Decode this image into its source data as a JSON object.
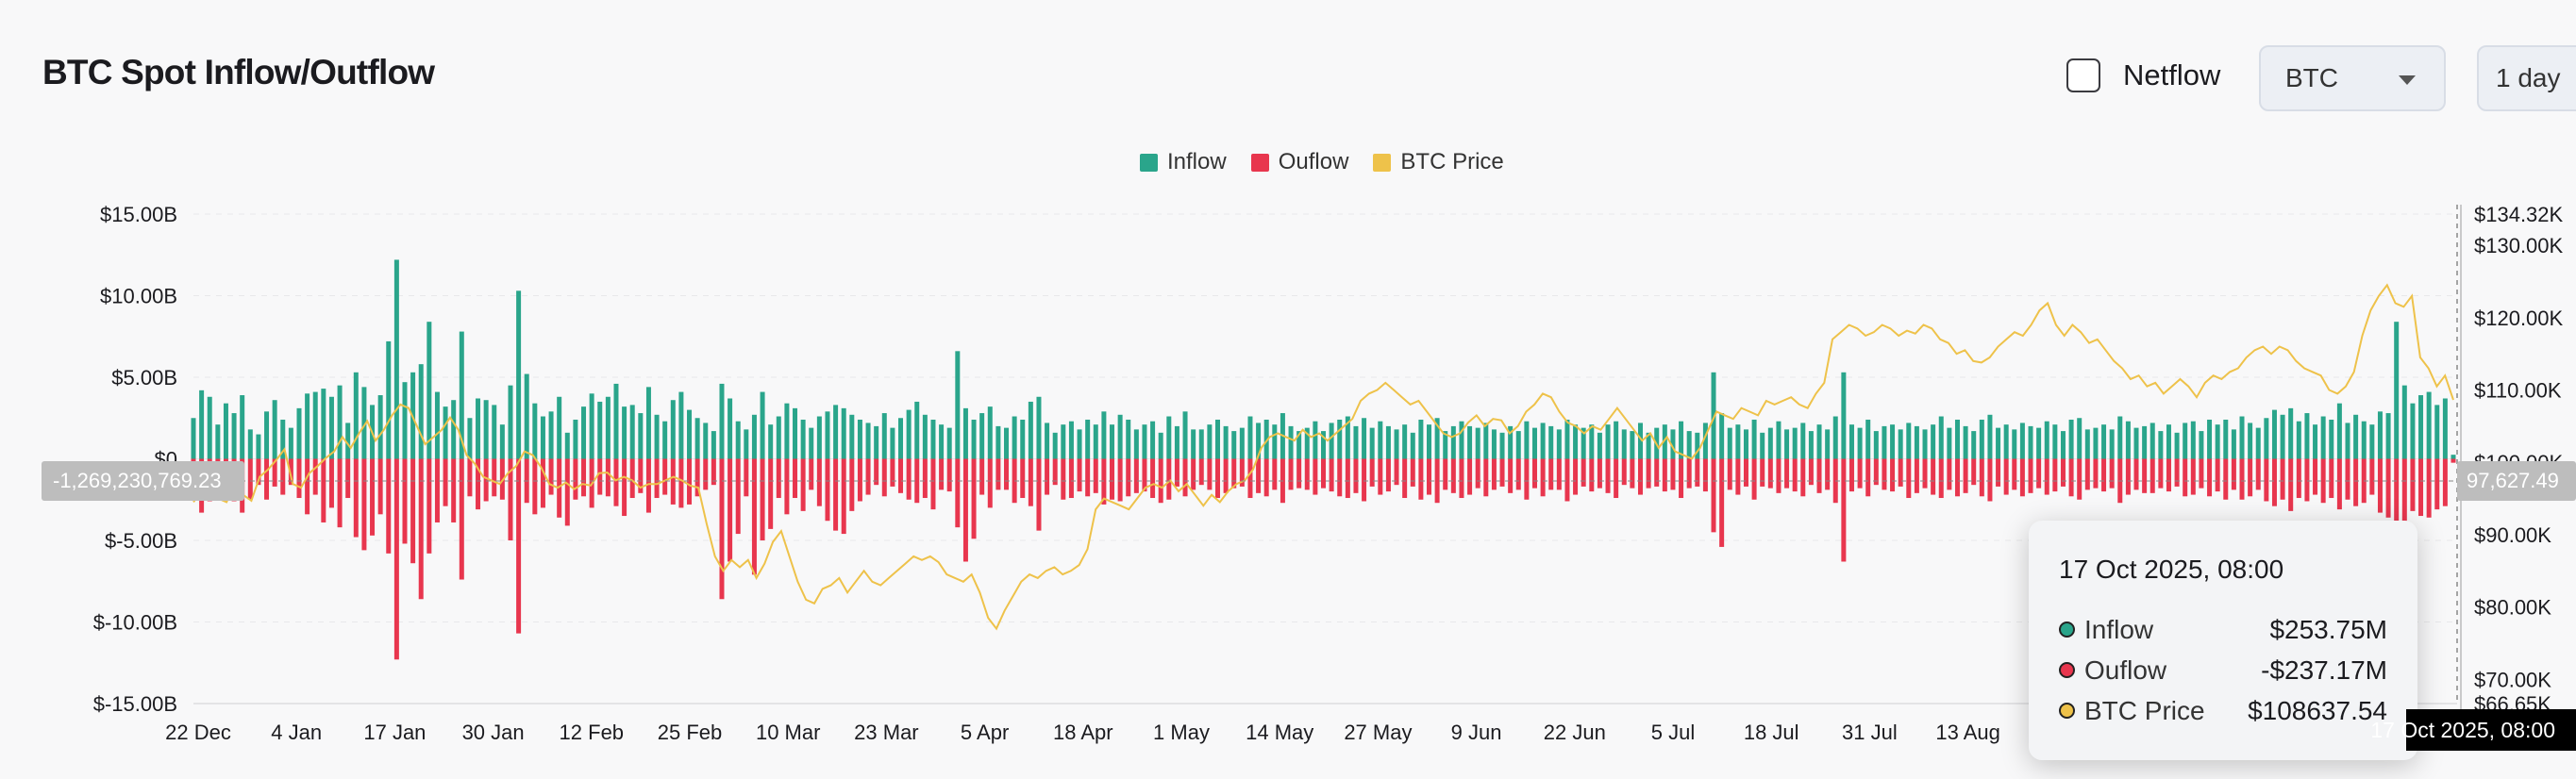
{
  "header": {
    "title": "BTC Spot Inflow/Outflow",
    "netflow_label": "Netflow",
    "asset_select_value": "BTC",
    "interval_value": "1 day"
  },
  "legend": [
    {
      "label": "Inflow",
      "color": "#2aa58b"
    },
    {
      "label": "Ouflow",
      "color": "#e8364e"
    },
    {
      "label": "BTC Price",
      "color": "#eec24a"
    }
  ],
  "tooltip": {
    "title": "17 Oct 2025, 08:00",
    "rows": [
      {
        "name": "Inflow",
        "value": "$253.75M",
        "color": "#2aa58b"
      },
      {
        "name": "Ouflow",
        "value": "-$237.17M",
        "color": "#e8364e"
      },
      {
        "name": "BTC Price",
        "value": "$108637.54",
        "color": "#eec24a"
      }
    ]
  },
  "crosshair": {
    "x_label": "17 Oct 2025, 08:00",
    "y_left_label": "-1,269,230,769.23",
    "y_right_label": "97,627.49"
  },
  "chart_data": {
    "type": "bar",
    "title": "BTC Spot Inflow/Outflow",
    "x_tick_labels": [
      "22 Dec",
      "4 Jan",
      "17 Jan",
      "30 Jan",
      "12 Feb",
      "25 Feb",
      "10 Mar",
      "23 Mar",
      "5 Apr",
      "18 Apr",
      "1 May",
      "14 May",
      "27 May",
      "9 Jun",
      "22 Jun",
      "5 Jul",
      "18 Jul",
      "31 Jul",
      "13 Aug"
    ],
    "y_left_ticks": [
      "$15.00B",
      "$10.00B",
      "$5.00B",
      "$0",
      "$-5.00B",
      "$-10.00B",
      "$-15.00B"
    ],
    "y_left_lim": [
      -15,
      15
    ],
    "y_left_unit": "B",
    "y_right_ticks": [
      "$134.32K",
      "$130.00K",
      "$120.00K",
      "$110.00K",
      "$100.00K",
      "$90.00K",
      "$80.00K",
      "$70.00K",
      "$66.65K"
    ],
    "y_right_lim": [
      66.65,
      134.32
    ],
    "y_right_unit": "K",
    "grid": true,
    "legend_position": "top-center",
    "x_start": "22 Dec",
    "x_end": "17 Oct",
    "series": [
      {
        "name": "Inflow",
        "color": "#2aa58b",
        "values": [
          2.5,
          4.2,
          3.8,
          2.1,
          3.4,
          2.8,
          3.9,
          1.8,
          1.5,
          2.9,
          3.6,
          2.4,
          1.9,
          3.1,
          4.0,
          4.1,
          4.3,
          3.8,
          4.5,
          2.2,
          5.3,
          4.4,
          3.3,
          3.9,
          7.2,
          12.2,
          4.7,
          5.3,
          5.8,
          8.4,
          4.1,
          3.2,
          3.6,
          7.8,
          2.5,
          3.7,
          3.6,
          3.3,
          2.1,
          4.5,
          10.3,
          5.2,
          3.4,
          2.6,
          2.9,
          3.8,
          1.6,
          2.4,
          3.2,
          4.0,
          3.5,
          3.8,
          4.6,
          3.2,
          3.3,
          2.8,
          4.4,
          2.7,
          2.3,
          3.6,
          4.1,
          3.0,
          2.5,
          2.2,
          1.7,
          4.6,
          3.7,
          2.3,
          1.8,
          2.7,
          4.1,
          2.1,
          2.6,
          3.4,
          3.1,
          2.4,
          1.9,
          2.6,
          2.9,
          3.3,
          3.1,
          2.7,
          2.4,
          2.2,
          2.0,
          2.8,
          1.9,
          2.5,
          3.0,
          3.5,
          2.7,
          2.4,
          2.1,
          1.9,
          6.6,
          3.1,
          2.4,
          2.8,
          3.2,
          2.0,
          1.9,
          2.6,
          2.4,
          3.5,
          3.8,
          2.2,
          1.6,
          2.1,
          2.3,
          1.8,
          2.4,
          2.1,
          2.9,
          2.1,
          2.7,
          2.4,
          1.8,
          2.1,
          2.3,
          1.6,
          2.6,
          2.0,
          2.9,
          1.8,
          1.8,
          2.1,
          2.4,
          2.0,
          1.7,
          1.9,
          2.6,
          2.2,
          2.4,
          2.1,
          2.8,
          2.0,
          1.7,
          1.9,
          2.3,
          1.7,
          2.2,
          2.4,
          2.6,
          2.0,
          2.5,
          1.9,
          2.3,
          2.0,
          1.8,
          2.1,
          1.6,
          2.4,
          2.1,
          2.5,
          1.7,
          2.0,
          2.3,
          2.0,
          1.9,
          2.2,
          1.8,
          1.6,
          2.0,
          1.7,
          2.3,
          1.9,
          2.2,
          2.0,
          1.8,
          2.4,
          2.1,
          1.9,
          2.1,
          1.6,
          2.1,
          2.3,
          1.8,
          1.7,
          2.2,
          1.6,
          1.9,
          2.1,
          1.8,
          2.3,
          1.7,
          1.6,
          2.2,
          5.3,
          2.8,
          1.9,
          2.1,
          1.8,
          2.4,
          1.6,
          1.9,
          2.3,
          1.8,
          1.9,
          2.2,
          1.7,
          2.1,
          1.8,
          2.6,
          5.3,
          2.1,
          1.9,
          2.4,
          1.7,
          2.0,
          2.1,
          1.8,
          2.2,
          2.0,
          1.8,
          2.1,
          2.6,
          1.9,
          2.4,
          2.0,
          1.7,
          2.4,
          2.7,
          1.9,
          2.1,
          1.8,
          2.2,
          2.0,
          1.9,
          2.3,
          2.1,
          1.7,
          2.4,
          2.5,
          1.8,
          1.9,
          2.1,
          1.8,
          2.6,
          2.3,
          1.9,
          2.0,
          2.2,
          1.7,
          2.1,
          1.6,
          2.2,
          2.3,
          1.7,
          2.4,
          2.1,
          2.4,
          1.8,
          2.6,
          2.2,
          1.9,
          2.5,
          3.0,
          2.7,
          3.1,
          2.3,
          2.8,
          2.1,
          2.6,
          2.4,
          3.4,
          2.2,
          2.7,
          2.3,
          2.1,
          2.9,
          2.8,
          8.4,
          4.5,
          3.4,
          3.9,
          4.1,
          3.3,
          3.7,
          0.25
        ]
      },
      {
        "name": "Ouflow",
        "color": "#e8364e",
        "values": [
          -2.4,
          -3.3,
          -2.6,
          -2.3,
          -2.1,
          -2.6,
          -3.3,
          -2.5,
          -1.6,
          -2.5,
          -1.7,
          -2.2,
          -1.6,
          -2.4,
          -3.4,
          -2.2,
          -3.9,
          -3.0,
          -4.2,
          -2.4,
          -4.8,
          -5.6,
          -4.7,
          -3.4,
          -5.8,
          -12.3,
          -5.2,
          -6.4,
          -8.6,
          -5.8,
          -3.9,
          -2.9,
          -3.9,
          -7.4,
          -2.3,
          -3.1,
          -2.6,
          -2.3,
          -2.5,
          -5.0,
          -10.7,
          -2.7,
          -3.4,
          -3.0,
          -2.2,
          -3.6,
          -4.1,
          -2.5,
          -2.3,
          -3.0,
          -2.2,
          -2.3,
          -2.9,
          -3.5,
          -2.4,
          -2.1,
          -3.3,
          -2.4,
          -2.2,
          -2.8,
          -3.0,
          -2.8,
          -2.3,
          -1.9,
          -1.6,
          -8.6,
          -6.3,
          -4.6,
          -2.3,
          -7.1,
          -5.0,
          -4.3,
          -2.4,
          -3.4,
          -2.4,
          -3.2,
          -1.9,
          -2.9,
          -3.8,
          -4.4,
          -4.6,
          -3.2,
          -2.6,
          -2.2,
          -1.6,
          -2.3,
          -1.7,
          -2.1,
          -2.5,
          -2.7,
          -2.4,
          -3.1,
          -1.9,
          -2.0,
          -4.2,
          -6.3,
          -4.9,
          -2.2,
          -3.0,
          -1.9,
          -1.9,
          -2.7,
          -2.4,
          -2.9,
          -4.4,
          -2.2,
          -1.6,
          -2.5,
          -2.4,
          -2.0,
          -2.3,
          -2.1,
          -2.8,
          -2.5,
          -2.6,
          -2.3,
          -2.1,
          -2.0,
          -2.4,
          -2.7,
          -2.5,
          -1.7,
          -2.3,
          -1.9,
          -1.6,
          -1.9,
          -2.4,
          -2.1,
          -1.8,
          -1.7,
          -2.4,
          -2.1,
          -2.3,
          -1.9,
          -2.7,
          -1.9,
          -1.8,
          -1.9,
          -2.2,
          -1.8,
          -2.0,
          -2.3,
          -2.4,
          -2.1,
          -2.6,
          -1.7,
          -2.2,
          -2.0,
          -1.6,
          -2.4,
          -1.7,
          -2.5,
          -2.2,
          -2.7,
          -1.9,
          -2.1,
          -2.4,
          -2.2,
          -1.8,
          -2.3,
          -1.9,
          -1.7,
          -2.1,
          -1.9,
          -2.5,
          -1.8,
          -2.3,
          -1.9,
          -1.9,
          -2.6,
          -2.2,
          -1.7,
          -2.0,
          -1.8,
          -2.1,
          -2.4,
          -1.6,
          -1.8,
          -2.2,
          -1.8,
          -1.7,
          -2.0,
          -1.9,
          -2.4,
          -1.8,
          -1.7,
          -2.0,
          -4.5,
          -5.4,
          -1.9,
          -2.2,
          -1.7,
          -2.5,
          -1.7,
          -1.8,
          -2.1,
          -1.8,
          -2.0,
          -2.3,
          -1.6,
          -2.1,
          -1.9,
          -2.7,
          -6.3,
          -2.0,
          -1.8,
          -2.3,
          -1.6,
          -1.9,
          -2.0,
          -1.7,
          -2.4,
          -2.1,
          -1.8,
          -2.2,
          -2.4,
          -1.9,
          -2.3,
          -2.1,
          -1.6,
          -2.3,
          -2.6,
          -1.7,
          -2.2,
          -1.9,
          -2.3,
          -2.1,
          -1.8,
          -2.2,
          -2.0,
          -1.7,
          -2.3,
          -2.5,
          -1.9,
          -1.8,
          -2.0,
          -1.8,
          -2.7,
          -2.2,
          -1.9,
          -2.1,
          -2.1,
          -1.8,
          -2.0,
          -1.7,
          -2.3,
          -2.2,
          -1.8,
          -2.3,
          -2.0,
          -2.5,
          -1.9,
          -2.5,
          -2.3,
          -1.9,
          -2.6,
          -2.9,
          -2.5,
          -3.2,
          -2.4,
          -2.6,
          -2.2,
          -2.7,
          -2.4,
          -3.1,
          -2.5,
          -2.9,
          -2.7,
          -2.2,
          -3.3,
          -3.6,
          -4.7,
          -3.8,
          -3.2,
          -3.5,
          -3.6,
          -3.1,
          -2.9,
          -0.24
        ]
      },
      {
        "name": "BTC Price",
        "color": "#eec24a",
        "values": [
          94.5,
          96.0,
          97.6,
          95.0,
          94.5,
          97.0,
          95.5,
          94.7,
          98.0,
          99.0,
          100.3,
          101.8,
          97.0,
          96.5,
          98.5,
          99.5,
          100.6,
          101.5,
          103.5,
          102.0,
          104.0,
          105.7,
          103.0,
          104.5,
          106.5,
          108.0,
          107.5,
          105.0,
          102.5,
          103.5,
          104.5,
          106.2,
          104.5,
          101.0,
          99.8,
          98.0,
          97.5,
          97.0,
          98.5,
          99.5,
          101.5,
          101.0,
          99.3,
          97.0,
          96.5,
          97.2,
          96.3,
          97.0,
          96.8,
          98.5,
          98.6,
          97.5,
          98.0,
          97.5,
          96.5,
          97.0,
          97.0,
          97.5,
          98.0,
          97.5,
          96.8,
          96.5,
          91.5,
          87.0,
          85.0,
          86.5,
          85.5,
          86.5,
          84.0,
          86.0,
          89.0,
          90.5,
          87.0,
          83.5,
          81.0,
          80.5,
          82.5,
          83.0,
          84.0,
          82.0,
          83.5,
          85.0,
          83.5,
          83.0,
          84.0,
          85.0,
          86.0,
          87.0,
          86.5,
          87.0,
          86.2,
          84.5,
          84.0,
          83.5,
          84.5,
          82.0,
          78.5,
          77.0,
          79.5,
          81.5,
          83.5,
          84.5,
          84.0,
          85.0,
          85.5,
          84.5,
          85.0,
          85.8,
          88.0,
          93.5,
          95.0,
          94.5,
          94.0,
          93.5,
          95.0,
          96.5,
          97.0,
          96.5,
          97.5,
          96.0,
          97.0,
          95.5,
          94.0,
          95.5,
          94.5,
          96.0,
          97.0,
          97.5,
          99.0,
          102.0,
          103.5,
          104.0,
          103.5,
          103.0,
          104.5,
          103.5,
          104.0,
          103.0,
          104.0,
          105.0,
          106.0,
          108.5,
          109.5,
          110.0,
          111.0,
          110.0,
          109.0,
          108.0,
          108.5,
          107.0,
          105.5,
          104.0,
          103.5,
          104.0,
          105.5,
          106.5,
          105.0,
          106.0,
          105.8,
          104.0,
          105.0,
          107.0,
          108.0,
          109.5,
          109.0,
          107.0,
          105.5,
          105.0,
          104.0,
          105.0,
          104.5,
          106.0,
          107.5,
          106.0,
          104.5,
          103.0,
          104.0,
          102.0,
          103.5,
          101.5,
          101.0,
          100.5,
          102.0,
          104.5,
          107.0,
          106.5,
          106.0,
          107.5,
          107.0,
          106.5,
          108.5,
          108.0,
          108.5,
          109.0,
          108.0,
          107.5,
          109.5,
          111.0,
          117.0,
          118.0,
          119.0,
          118.5,
          117.5,
          118.0,
          119.0,
          118.5,
          117.5,
          118.2,
          117.8,
          119.0,
          118.5,
          117.0,
          116.5,
          115.0,
          115.5,
          114.0,
          113.8,
          114.5,
          116.0,
          117.0,
          118.0,
          117.5,
          119.0,
          121.0,
          122.0,
          119.0,
          117.5,
          119.0,
          118.0,
          116.5,
          117.0,
          115.5,
          114.0,
          113.0,
          111.5,
          112.0,
          110.5,
          111.0,
          109.5,
          110.5,
          111.5,
          110.5,
          109.0,
          111.0,
          112.0,
          111.5,
          112.5,
          113.0,
          114.5,
          115.5,
          116.0,
          115.0,
          116.0,
          115.5,
          114.0,
          113.0,
          112.5,
          112.0,
          110.0,
          109.5,
          110.5,
          112.5,
          117.5,
          121.0,
          123.0,
          124.5,
          122.0,
          121.5,
          123.0,
          114.5,
          113.0,
          110.5,
          112.0,
          108.64
        ]
      }
    ]
  }
}
